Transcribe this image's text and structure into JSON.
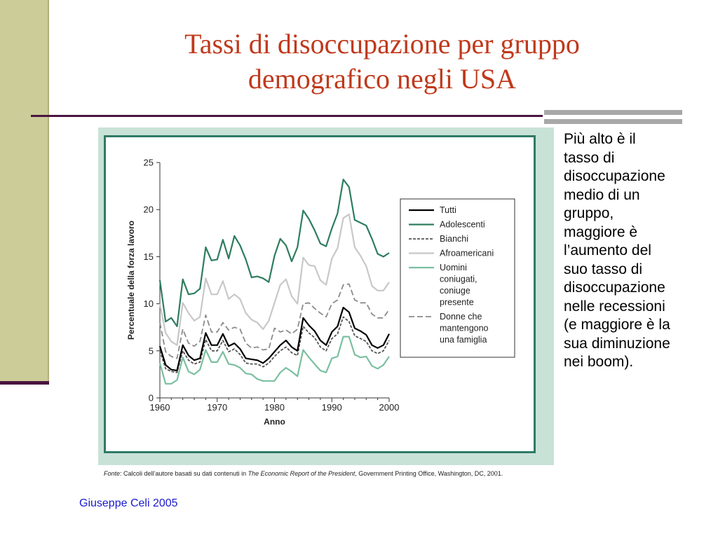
{
  "slide": {
    "title_line1": "Tassi di disoccupazione per gruppo",
    "title_line2": "demografico negli USA",
    "side_text": "Più alto è il\ntasso di\ndisoccupazione\nmedio di un\ngruppo,\nmaggiore è\nl’aumento del\nsuo tasso di\ndisoccupazione\nnelle recessioni\n(e maggiore è la\nsua diminuzione\nnei boom).",
    "footer": "Giuseppe Celi  2005",
    "source_label": "Fonte",
    "source_pre": ": Calcoli dell’autore basati su dati contenuti in ",
    "source_italic": "The Economic Report of the President",
    "source_post": ", Government Printing Office, Washington, DC, 2001."
  },
  "colors": {
    "title": "#c0391b",
    "band": "#cccc99",
    "rule": "#4a1540",
    "frame": "#2f7a66",
    "frame_bg": "#c9e2d8",
    "footer": "#1a1acc"
  },
  "chart_data": {
    "type": "line",
    "xlabel": "Anno",
    "ylabel": "Percentuale della forza lavoro",
    "xlim": [
      1960,
      2000
    ],
    "ylim": [
      0,
      25
    ],
    "xticks": [
      1960,
      1970,
      1980,
      1990,
      2000
    ],
    "yticks": [
      0,
      5,
      10,
      15,
      20,
      25
    ],
    "grid": false,
    "legend_position": "right",
    "x": [
      1960,
      1961,
      1962,
      1963,
      1964,
      1965,
      1966,
      1967,
      1968,
      1969,
      1970,
      1971,
      1972,
      1973,
      1974,
      1975,
      1976,
      1977,
      1978,
      1979,
      1980,
      1981,
      1982,
      1983,
      1984,
      1985,
      1986,
      1987,
      1988,
      1989,
      1990,
      1991,
      1992,
      1993,
      1994,
      1995,
      1996,
      1997,
      1998,
      1999,
      2000
    ],
    "series": [
      {
        "name": "Tutti",
        "color": "#000000",
        "dash": "",
        "width": 2.2,
        "values": [
          5.5,
          3.5,
          3.0,
          2.9,
          5.6,
          4.5,
          4.0,
          4.2,
          6.9,
          5.6,
          5.6,
          6.8,
          5.5,
          5.8,
          5.2,
          4.2,
          4.1,
          4.0,
          3.7,
          4.2,
          4.9,
          5.6,
          6.1,
          5.4,
          5.0,
          8.5,
          7.7,
          7.1,
          6.1,
          5.6,
          7.0,
          7.6,
          9.6,
          9.1,
          7.4,
          7.1,
          6.7,
          5.6,
          5.3,
          5.6,
          6.8
        ]
      },
      {
        "name": "Adolescenti",
        "color": "#2e7d5e",
        "dash": "",
        "width": 2.2,
        "values": [
          12.5,
          8.1,
          8.5,
          7.6,
          12.6,
          11.0,
          11.1,
          11.6,
          16.0,
          14.6,
          14.7,
          16.8,
          14.8,
          17.2,
          16.2,
          14.7,
          12.8,
          12.9,
          12.7,
          12.3,
          15.1,
          16.9,
          16.2,
          14.5,
          16.0,
          19.9,
          19.0,
          17.8,
          16.4,
          16.1,
          18.0,
          19.6,
          23.2,
          22.4,
          18.9,
          18.6,
          18.3,
          16.9,
          15.3,
          15.0,
          15.4
        ]
      },
      {
        "name": "Bianchi",
        "color": "#555555",
        "dash": "4,2",
        "width": 1.8,
        "values": [
          5.0,
          3.1,
          2.8,
          2.7,
          5.0,
          4.0,
          3.6,
          3.8,
          6.2,
          5.0,
          5.0,
          6.1,
          4.9,
          5.2,
          4.6,
          3.7,
          3.6,
          3.6,
          3.3,
          3.7,
          4.4,
          5.0,
          5.4,
          4.8,
          4.5,
          7.6,
          6.9,
          6.4,
          5.4,
          5.0,
          6.3,
          6.8,
          8.6,
          8.1,
          6.6,
          6.3,
          6.0,
          5.0,
          4.7,
          5.0,
          6.1
        ]
      },
      {
        "name": "Afroamericani",
        "color": "#c8c8c8",
        "dash": "",
        "width": 2.2,
        "values": [
          10.0,
          6.9,
          6.0,
          5.6,
          10.1,
          9.0,
          8.2,
          8.6,
          12.7,
          11.0,
          11.0,
          12.4,
          10.5,
          11.0,
          10.5,
          9.0,
          8.3,
          8.0,
          7.3,
          8.2,
          10.1,
          12.0,
          12.6,
          10.8,
          10.0,
          14.9,
          14.1,
          14.0,
          12.5,
          12.0,
          14.8,
          15.9,
          19.1,
          19.5,
          16.0,
          15.1,
          14.0,
          11.9,
          11.4,
          11.4,
          12.3
        ]
      },
      {
        "name": "Uomini coniugati, coniuge presente",
        "color": "#7bbfa0",
        "dash": "",
        "width": 2.2,
        "values": [
          3.7,
          1.5,
          1.5,
          1.9,
          4.3,
          2.8,
          2.5,
          3.0,
          5.1,
          3.8,
          3.8,
          4.9,
          3.6,
          3.5,
          3.2,
          2.6,
          2.5,
          2.0,
          1.8,
          1.8,
          1.8,
          2.7,
          3.2,
          2.8,
          2.3,
          5.1,
          4.3,
          3.6,
          2.9,
          2.7,
          4.2,
          4.4,
          6.5,
          6.5,
          4.6,
          4.3,
          4.4,
          3.4,
          3.1,
          3.5,
          4.4
        ]
      },
      {
        "name": "Donne che mantengono una famiglia",
        "color": "#8c8c8c",
        "dash": "8,4",
        "width": 1.8,
        "values": [
          8.0,
          4.9,
          4.4,
          4.2,
          7.3,
          5.8,
          5.5,
          6.0,
          8.8,
          7.0,
          7.0,
          8.0,
          7.2,
          7.5,
          7.3,
          5.8,
          5.3,
          5.4,
          5.1,
          5.2,
          7.4,
          7.0,
          7.2,
          6.8,
          7.3,
          10.0,
          10.1,
          9.5,
          9.0,
          8.6,
          10.0,
          10.4,
          12.0,
          12.1,
          10.4,
          10.1,
          10.1,
          8.9,
          8.5,
          8.5,
          9.4
        ]
      }
    ]
  }
}
